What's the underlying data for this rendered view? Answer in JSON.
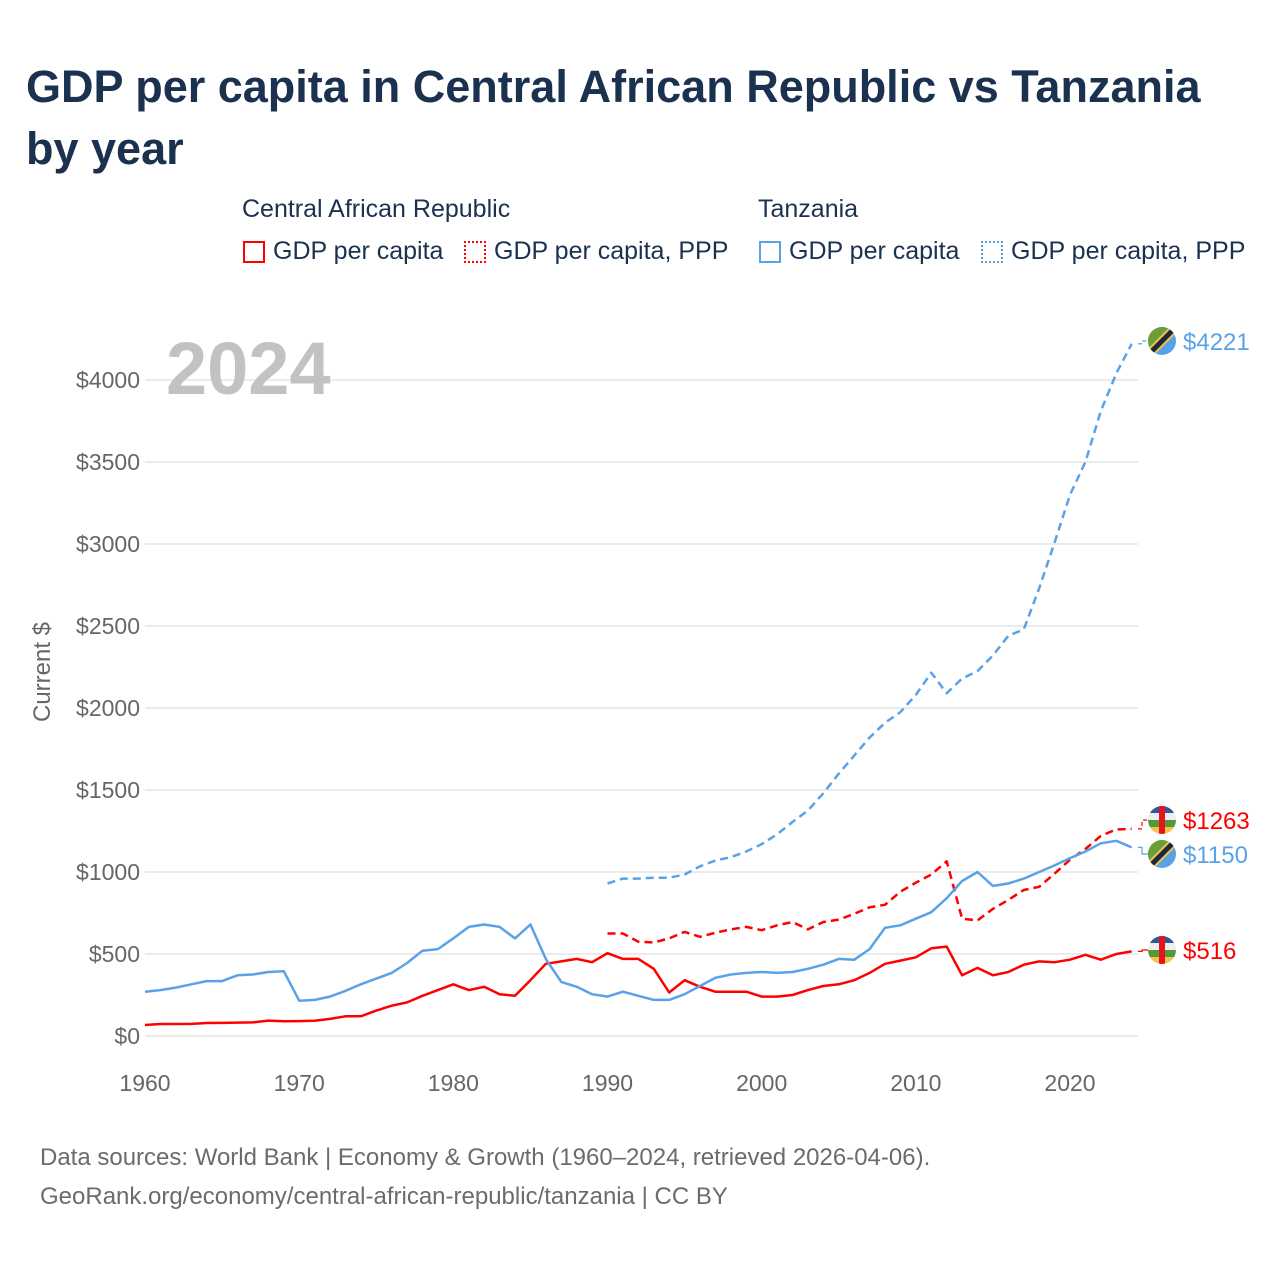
{
  "title": "GDP per capita in Central African Republic vs Tanzania by year",
  "legend": {
    "groups": [
      {
        "name": "Central African Republic",
        "items": [
          "GDP per capita",
          "GDP per capita, PPP"
        ],
        "color": "#ff0000"
      },
      {
        "name": "Tanzania",
        "items": [
          "GDP per capita",
          "GDP per capita, PPP"
        ],
        "color": "#5aa2e8"
      }
    ]
  },
  "year_overlay": "2024",
  "footer": {
    "line1": "Data sources: World Bank | Economy & Growth (1960–2024, retrieved 2026-04-06).",
    "line2": "GeoRank.org/economy/central-african-republic/tanzania | CC BY"
  },
  "chart_data": {
    "type": "line",
    "title": "GDP per capita in Central African Republic vs Tanzania by year",
    "xlabel": "",
    "ylabel": "Current $",
    "xlim": [
      1960,
      2024
    ],
    "ylim": [
      0,
      4300
    ],
    "x_ticks": [
      "1960",
      "1970",
      "1980",
      "1990",
      "2000",
      "2010",
      "2020"
    ],
    "y_ticks": [
      "$0",
      "$500",
      "$1000",
      "$1500",
      "$2000",
      "$2500",
      "$3000",
      "$3500",
      "$4000"
    ],
    "grid": true,
    "legend_position": "top",
    "series": [
      {
        "name": "Central African Republic — GDP per capita",
        "color": "#ff0000",
        "dash": false,
        "start": 1960,
        "end_label": "$516",
        "values": [
          67,
          73,
          73,
          74,
          79,
          80,
          82,
          83,
          94,
          90,
          91,
          93,
          104,
          120,
          120,
          155,
          185,
          205,
          245,
          280,
          315,
          280,
          300,
          255,
          245,
          340,
          440,
          455,
          470,
          450,
          505,
          470,
          470,
          410,
          265,
          340,
          300,
          270,
          270,
          270,
          240,
          240,
          250,
          280,
          305,
          315,
          340,
          385,
          440,
          460,
          480,
          535,
          545,
          370,
          415,
          370,
          390,
          435,
          455,
          450,
          465,
          495,
          465,
          500,
          516
        ]
      },
      {
        "name": "Central African Republic — GDP per capita, PPP",
        "color": "#ff0000",
        "dash": true,
        "start": 1990,
        "end_label": "$1263",
        "values": [
          625,
          625,
          575,
          570,
          595,
          635,
          605,
          630,
          650,
          665,
          645,
          675,
          695,
          650,
          695,
          710,
          745,
          785,
          800,
          880,
          935,
          985,
          1065,
          715,
          705,
          775,
          830,
          890,
          910,
          990,
          1075,
          1140,
          1220,
          1260,
          1263
        ]
      },
      {
        "name": "Tanzania — GDP per capita",
        "color": "#5aa2e8",
        "dash": false,
        "start": 1960,
        "end_label": "$1150",
        "values": [
          270,
          280,
          295,
          315,
          335,
          335,
          370,
          375,
          390,
          395,
          215,
          220,
          240,
          275,
          315,
          350,
          385,
          445,
          520,
          530,
          595,
          665,
          680,
          665,
          595,
          680,
          470,
          330,
          300,
          255,
          240,
          270,
          245,
          220,
          220,
          255,
          305,
          355,
          375,
          385,
          390,
          385,
          390,
          410,
          435,
          470,
          465,
          530,
          660,
          675,
          715,
          755,
          840,
          945,
          1000,
          915,
          930,
          960,
          1000,
          1040,
          1085,
          1125,
          1175,
          1190,
          1150
        ]
      },
      {
        "name": "Tanzania — GDP per capita, PPP",
        "color": "#5aa2e8",
        "dash": true,
        "start": 1990,
        "end_label": "$4221",
        "values": [
          930,
          960,
          960,
          965,
          965,
          985,
          1035,
          1070,
          1090,
          1125,
          1170,
          1230,
          1305,
          1375,
          1480,
          1600,
          1710,
          1820,
          1910,
          1975,
          2080,
          2215,
          2090,
          2180,
          2225,
          2320,
          2440,
          2480,
          2730,
          3010,
          3300,
          3500,
          3810,
          4040,
          4221
        ]
      }
    ]
  }
}
